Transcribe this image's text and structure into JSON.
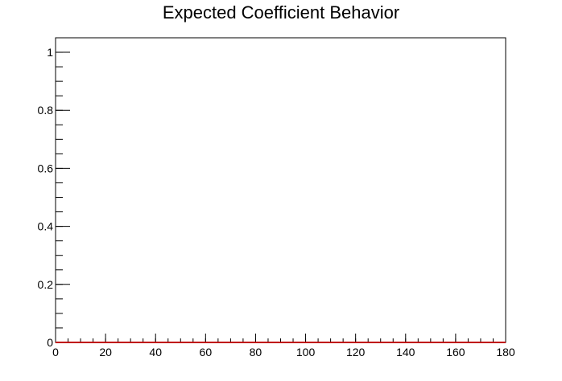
{
  "chart_data": {
    "type": "line",
    "title": "Expected Coefficient Behavior",
    "xlabel": "",
    "ylabel": "",
    "xlim": [
      0,
      180
    ],
    "ylim": [
      0,
      1.05
    ],
    "x_ticks": [
      0,
      20,
      40,
      60,
      80,
      100,
      120,
      140,
      160,
      180
    ],
    "x_tick_labels": [
      "0",
      "20",
      "40",
      "60",
      "80",
      "100",
      "120",
      "140",
      "160",
      "180"
    ],
    "y_ticks": [
      0,
      0.2,
      0.4,
      0.6,
      0.8,
      1
    ],
    "y_tick_labels": [
      "0",
      "0.2",
      "0.4",
      "0.6",
      "0.8",
      "1"
    ],
    "x_minor_step": 5,
    "y_minor_step": 0.05,
    "grid": false,
    "series": [
      {
        "color": "#c00000",
        "x": [
          0,
          180
        ],
        "y": [
          0,
          0
        ]
      }
    ]
  }
}
